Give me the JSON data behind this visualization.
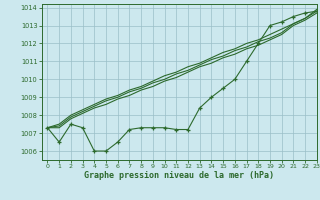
{
  "title": "",
  "xlabel": "Graphe pression niveau de la mer (hPa)",
  "ylabel": "",
  "bg_color": "#cce8ee",
  "grid_color": "#9bbfc8",
  "line_color": "#2d6a2d",
  "xlim": [
    -0.5,
    23
  ],
  "ylim": [
    1005.5,
    1014.2
  ],
  "yticks": [
    1006,
    1007,
    1008,
    1009,
    1010,
    1011,
    1012,
    1013,
    1014
  ],
  "xticks": [
    0,
    1,
    2,
    3,
    4,
    5,
    6,
    7,
    8,
    9,
    10,
    11,
    12,
    13,
    14,
    15,
    16,
    17,
    18,
    19,
    20,
    21,
    22,
    23
  ],
  "line1_x": [
    0,
    1,
    2,
    3,
    4,
    5,
    6,
    7,
    8,
    9,
    10,
    11,
    12,
    13,
    14,
    15,
    16,
    17,
    18,
    19,
    20,
    21,
    22,
    23
  ],
  "line1": [
    1007.3,
    1006.5,
    1007.5,
    1007.3,
    1006.0,
    1006.0,
    1006.5,
    1007.2,
    1007.3,
    1007.3,
    1007.3,
    1007.2,
    1007.2,
    1008.4,
    1009.0,
    1009.5,
    1010.0,
    1011.0,
    1012.0,
    1013.0,
    1013.2,
    1013.5,
    1013.7,
    1013.8
  ],
  "line2": [
    1007.3,
    1007.3,
    1007.8,
    1008.1,
    1008.4,
    1008.6,
    1008.9,
    1009.1,
    1009.4,
    1009.6,
    1009.9,
    1010.1,
    1010.4,
    1010.7,
    1010.9,
    1011.2,
    1011.4,
    1011.7,
    1011.9,
    1012.2,
    1012.5,
    1013.0,
    1013.3,
    1013.7
  ],
  "line3": [
    1007.3,
    1007.4,
    1007.9,
    1008.2,
    1008.5,
    1008.8,
    1009.0,
    1009.3,
    1009.5,
    1009.8,
    1010.0,
    1010.3,
    1010.5,
    1010.8,
    1011.1,
    1011.3,
    1011.6,
    1011.8,
    1012.1,
    1012.3,
    1012.6,
    1013.1,
    1013.4,
    1013.8
  ],
  "line4": [
    1007.3,
    1007.5,
    1008.0,
    1008.3,
    1008.6,
    1008.9,
    1009.1,
    1009.4,
    1009.6,
    1009.9,
    1010.2,
    1010.4,
    1010.7,
    1010.9,
    1011.2,
    1011.5,
    1011.7,
    1012.0,
    1012.2,
    1012.5,
    1012.8,
    1013.1,
    1013.4,
    1013.9
  ]
}
